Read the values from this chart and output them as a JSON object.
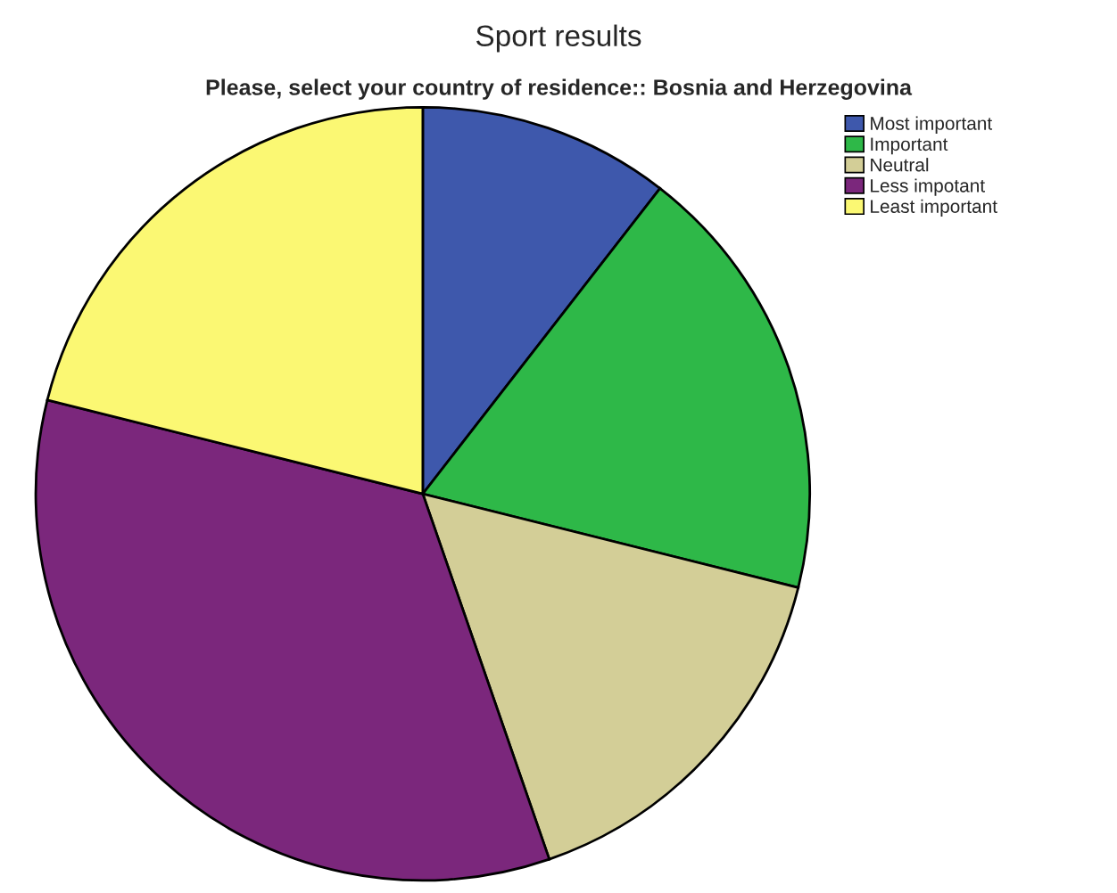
{
  "chart_data": {
    "type": "pie",
    "title": "Sport results",
    "subtitle": "Please, select your country of residence:: Bosnia and Herzegovina",
    "categories": [
      "Most important",
      "Important",
      "Neutral",
      "Less impotant",
      "Least important"
    ],
    "values": [
      10.5,
      18.4,
      15.8,
      34.2,
      21.1
    ],
    "colors": [
      "#3e58ac",
      "#2eb848",
      "#d3ce97",
      "#7b277c",
      "#fbf873"
    ],
    "legend": "top right"
  }
}
